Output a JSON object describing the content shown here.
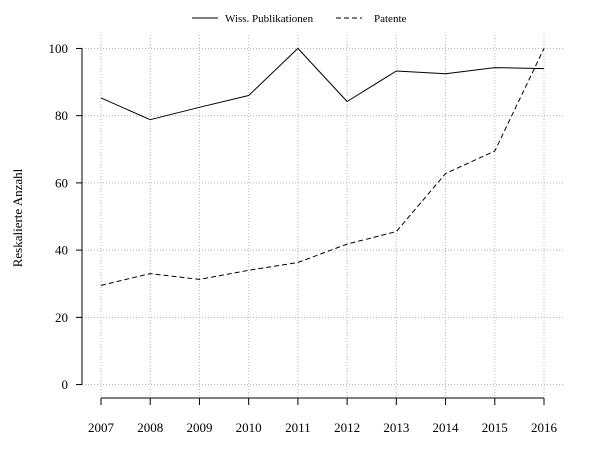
{
  "chart_data": {
    "type": "line",
    "title": "",
    "xlabel": "",
    "ylabel": "Reskalierte Anzahl",
    "x": [
      2007,
      2008,
      2009,
      2010,
      2011,
      2012,
      2013,
      2014,
      2015,
      2016
    ],
    "xlim": [
      2007,
      2016
    ],
    "ylim": [
      -4,
      104
    ],
    "yticks": [
      0,
      20,
      40,
      60,
      80,
      100
    ],
    "grid": true,
    "legend_position": "top-center",
    "series": [
      {
        "name": "Wiss. Publikationen",
        "line_style": "solid",
        "color": "#000000",
        "values": [
          85.3,
          78.8,
          82.5,
          86.0,
          100.0,
          84.2,
          93.3,
          92.5,
          94.3,
          94.0
        ]
      },
      {
        "name": "Patente",
        "line_style": "dashed",
        "color": "#000000",
        "values": [
          29.5,
          33.0,
          31.3,
          34.0,
          36.3,
          41.8,
          45.5,
          62.8,
          69.5,
          100.0
        ]
      }
    ]
  }
}
